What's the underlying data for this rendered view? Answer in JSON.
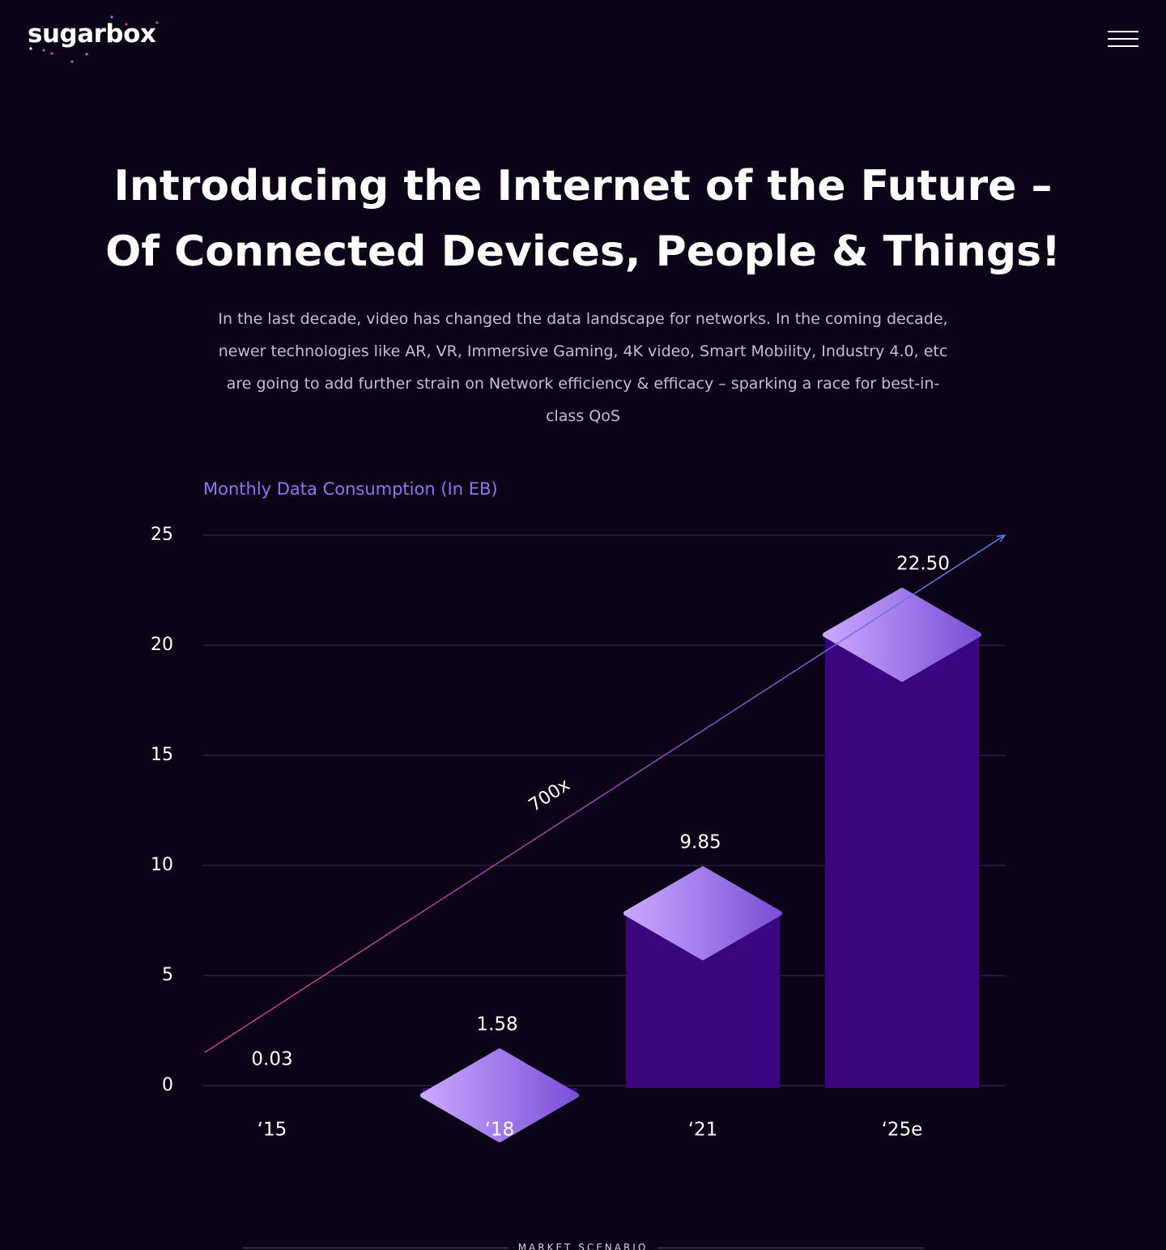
{
  "header": {
    "logo_text": "sugarbox",
    "menu_icon": "hamburger-menu-icon"
  },
  "hero": {
    "title": "Introducing the Internet of the Future – Of Connected Devices, People & Things!",
    "description": "In the last decade, video has changed the data landscape for networks. In the coming decade, newer technologies like AR, VR, Immersive Gaming, 4K video, Smart Mobility, Industry 4.0, etc are going to add further strain on Network efficiency & efficacy – sparking a race for best-in-class QoS"
  },
  "colors": {
    "background": "#0b0218",
    "accent": "#9b6ff0",
    "bar_body": "#3a0680",
    "bar_top_light": "#c9a8ff",
    "bar_top_dark": "#7a4fd8",
    "trend_start": "#e0427a",
    "trend_end": "#5a7ff0"
  },
  "chart_data": {
    "type": "bar",
    "title": "Monthly Data Consumption (In EB)",
    "xlabel": "",
    "ylabel": "",
    "ylim": [
      0,
      25
    ],
    "yticks": [
      "0",
      "5",
      "10",
      "15",
      "20",
      "25"
    ],
    "grid": true,
    "categories": [
      "‘15",
      "‘18",
      "‘21",
      "‘25e"
    ],
    "values": [
      0.03,
      1.58,
      9.85,
      22.5
    ],
    "value_labels": [
      "0.03",
      "1.58",
      "9.85",
      "22.50"
    ],
    "annotation": "700x"
  },
  "footer": {
    "section_label": "MARKET SCENARIO"
  }
}
